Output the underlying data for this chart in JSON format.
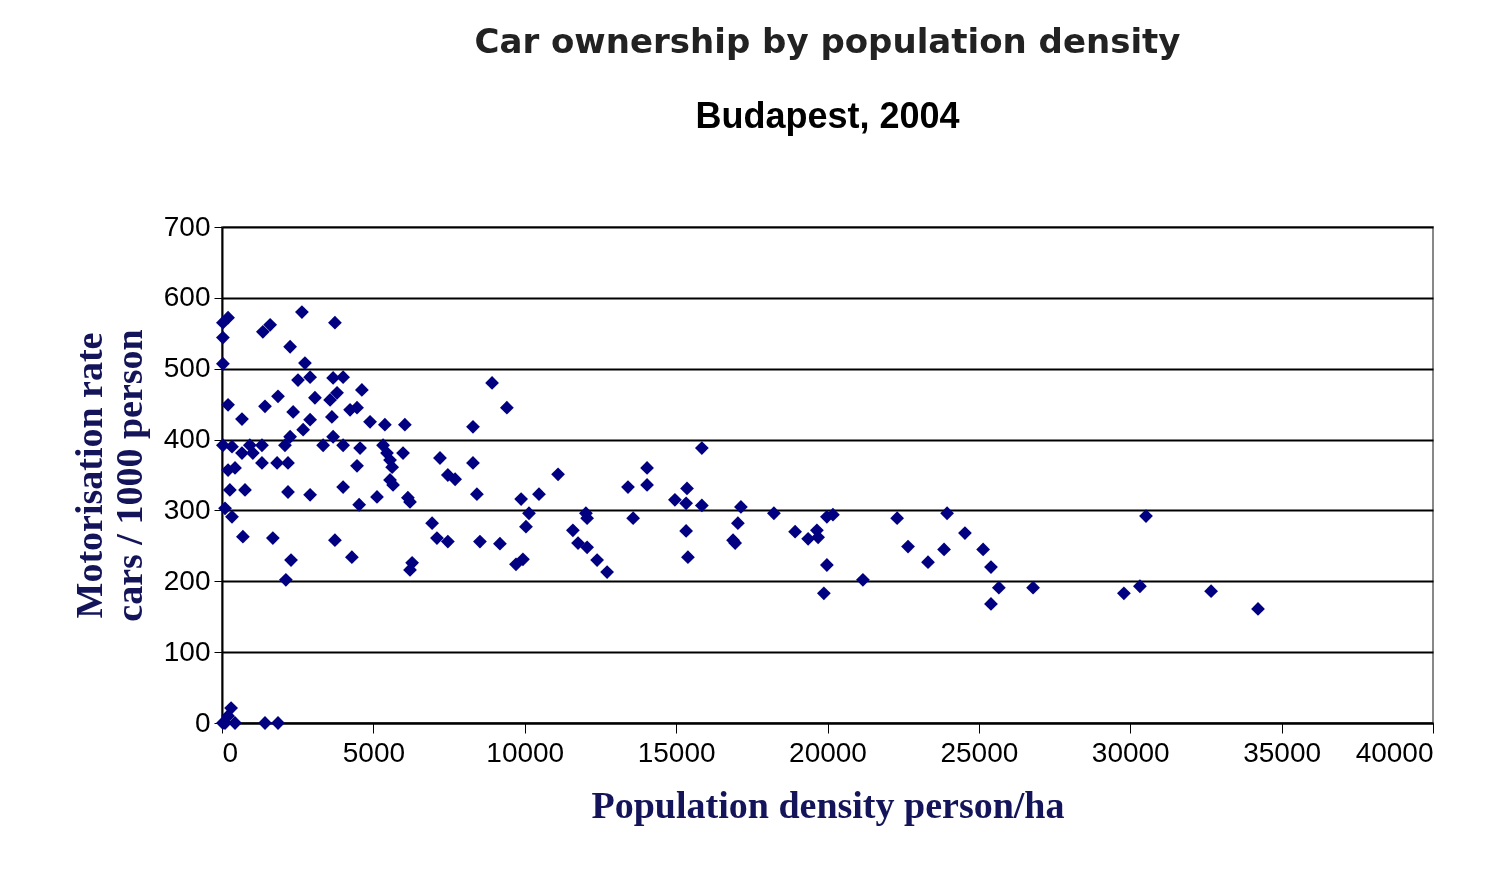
{
  "chart_data": {
    "type": "scatter",
    "title": "Car ownership by population density",
    "subtitle": "Budapest, 2004",
    "xlabel": "Population density person/ha",
    "ylabel": "Motorisation rate\ncars / 1000 person",
    "xlim": [
      0,
      40000
    ],
    "xticks": [
      0,
      5000,
      10000,
      15000,
      20000,
      25000,
      30000,
      35000,
      40000
    ],
    "ylim": [
      0,
      700
    ],
    "yticks": [
      0,
      100,
      200,
      300,
      400,
      500,
      600,
      700
    ],
    "grid": "y",
    "marker": "diamond",
    "series": [
      {
        "color": "#000080",
        "x": [
          200,
          30,
          30,
          30,
          1350,
          1590,
          2640,
          3730,
          2250,
          2740,
          2510,
          2910,
          3670,
          4000,
          200,
          660,
          1420,
          1850,
          2350,
          3070,
          3570,
          3800,
          4620,
          4460,
          4230,
          3630,
          2910,
          2680,
          2250,
          2080,
          4890,
          5380,
          6040,
          30,
          330,
          660,
          920,
          1020,
          1320,
          3340,
          3670,
          4000,
          4560,
          5320,
          5450,
          5550,
          5980,
          200,
          430,
          1320,
          1820,
          2180,
          4460,
          5620,
          7200,
          8290,
          7460,
          7700,
          8290,
          8920,
          9410,
          260,
          760,
          2180,
          2910,
          4000,
          5550,
          5650,
          4530,
          5120,
          6140,
          6210,
          8420,
          100,
          330,
          690,
          1680,
          3730,
          4290,
          2280,
          2110,
          6280,
          6210,
          6940,
          7100,
          7460,
          8520,
          9180,
          15850,
          14040,
          14040,
          13410,
          11100,
          10470,
          9880,
          10140,
          10040,
          9710,
          9940,
          12020,
          12060,
          11590,
          11760,
          12060,
          12390,
          12720,
          13580,
          14960,
          15360,
          15330,
          15850,
          15330,
          15390,
          17140,
          17040,
          16880,
          16950,
          18230,
          18930,
          19360,
          19650,
          19690,
          19980,
          20180,
          19980,
          19880,
          21170,
          22300,
          22660,
          23320,
          23950,
          23850,
          24540,
          25140,
          25400,
          25660,
          25400,
          26790,
          29790,
          30320,
          30520,
          32670,
          34220,
          30,
          300,
          430,
          1420,
          1850,
          100,
          200
        ],
        "values": [
          572,
          565,
          544,
          507,
          552,
          562,
          580,
          565,
          531,
          508,
          484,
          488,
          487,
          488,
          449,
          429,
          447,
          461,
          439,
          459,
          456,
          466,
          470,
          445,
          442,
          432,
          428,
          414,
          404,
          392,
          425,
          421,
          421,
          392,
          390,
          381,
          392,
          381,
          392,
          392,
          404,
          392,
          388,
          392,
          381,
          371,
          381,
          357,
          360,
          367,
          367,
          367,
          363,
          361,
          374,
          367,
          350,
          344,
          418,
          480,
          445,
          329,
          329,
          326,
          322,
          333,
          343,
          336,
          308,
          319,
          318,
          312,
          323,
          303,
          291,
          263,
          261,
          258,
          234,
          230,
          202,
          226,
          216,
          282,
          261,
          256,
          256,
          253,
          388,
          360,
          336,
          333,
          351,
          323,
          316,
          296,
          277,
          224,
          231,
          296,
          289,
          272,
          254,
          248,
          230,
          213,
          289,
          315,
          331,
          310,
          307,
          271,
          234,
          305,
          282,
          258,
          254,
          296,
          270,
          260,
          272,
          262,
          291,
          294,
          223,
          183,
          202,
          289,
          249,
          227,
          296,
          245,
          268,
          245,
          220,
          191,
          168,
          191,
          183,
          193,
          292,
          186,
          161,
          0,
          21,
          0,
          0,
          0,
          0,
          10
        ]
      }
    ]
  }
}
